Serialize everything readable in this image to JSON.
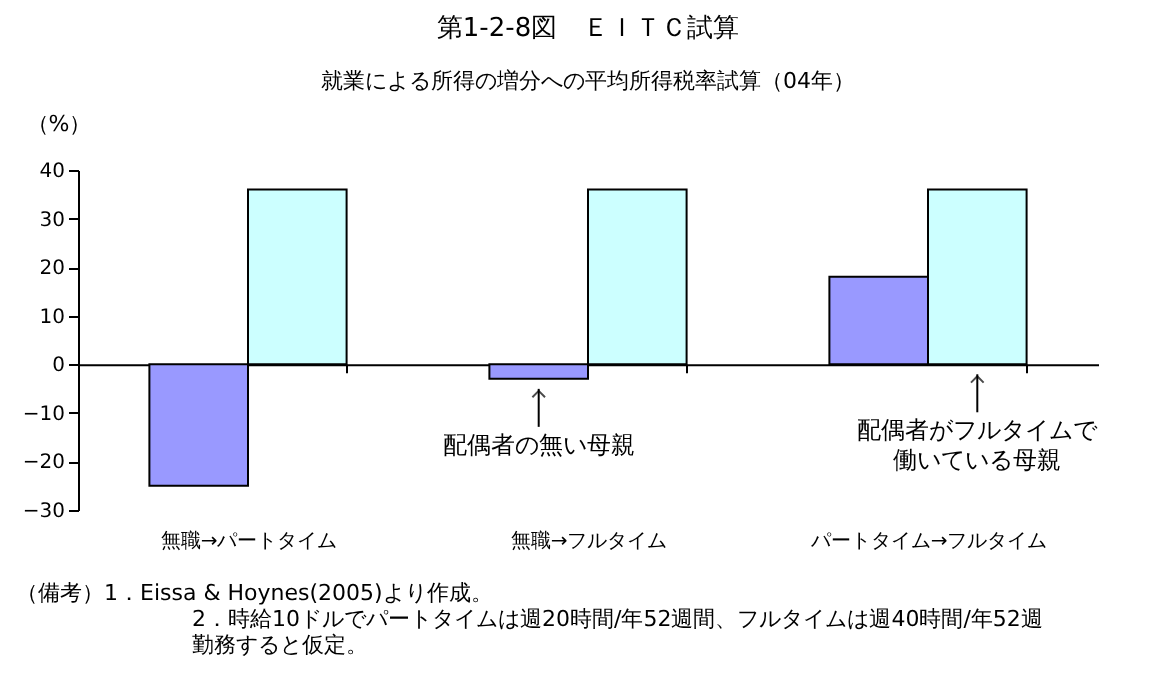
{
  "chart_data": {
    "type": "bar",
    "title": "第1-2-8図　ＥＩＴＣ試算",
    "subtitle": "就業による所得の増分への平均所得税率試算（04年）",
    "ylabel": "（%）",
    "categories": [
      "無職→パートタイム",
      "無職→フルタイム",
      "パートタイム→フルタイム"
    ],
    "series": [
      {
        "color": "#9999ff",
        "values": [
          -25,
          -3,
          18
        ]
      },
      {
        "color": "#ccffff",
        "values": [
          36,
          36,
          36
        ]
      }
    ],
    "ylim": [
      -30,
      40
    ],
    "yticks": [
      -30,
      -20,
      -10,
      0,
      10,
      20,
      30,
      40
    ],
    "legend": false,
    "annotations": [
      {
        "text": "配偶者の無い母親",
        "x": "無職→フルタイム",
        "y": -3
      },
      {
        "text": "配偶者がフルタイムで働いている母親",
        "x": "パートタイム→フルタイム",
        "y": 0
      },
      "（備考）1．Eissa & Hoynes(2005)より作成。",
      "2．時給10ドルでパートタイムは週20時間/年52週間、フルタイムは週40時間/年52週勤務すると仮定。"
    ]
  }
}
